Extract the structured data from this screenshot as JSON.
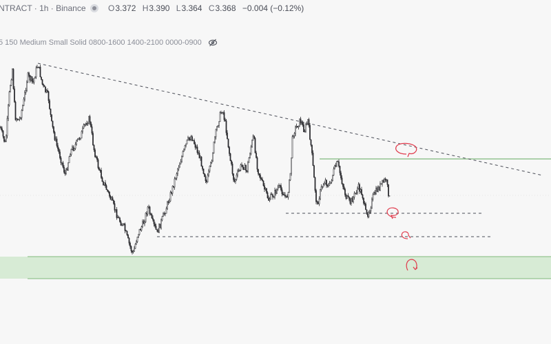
{
  "header": {
    "symbol_text": "NTRACT · 1h · Binance",
    "ohlc": [
      {
        "key": "O",
        "value": "3.372"
      },
      {
        "key": "H",
        "value": "3.390"
      },
      {
        "key": "L",
        "value": "3.364"
      },
      {
        "key": "C",
        "value": "3.368"
      }
    ],
    "change": "−0.004 (−0.12%)"
  },
  "indicators": {
    "text": "5 150 Medium Small Solid 0800-1600 1400-2100 0000-0900"
  },
  "icons": {
    "visibility": "eye-off-icon",
    "status": "status-dot-icon"
  },
  "colors": {
    "background": "#f7f7f7",
    "candles": "#2a2a2e",
    "support_zone": "#d7ebd5",
    "support_line": "#7fb97b",
    "dashed": "#4a4d57",
    "annotation": "#e0394b"
  }
}
